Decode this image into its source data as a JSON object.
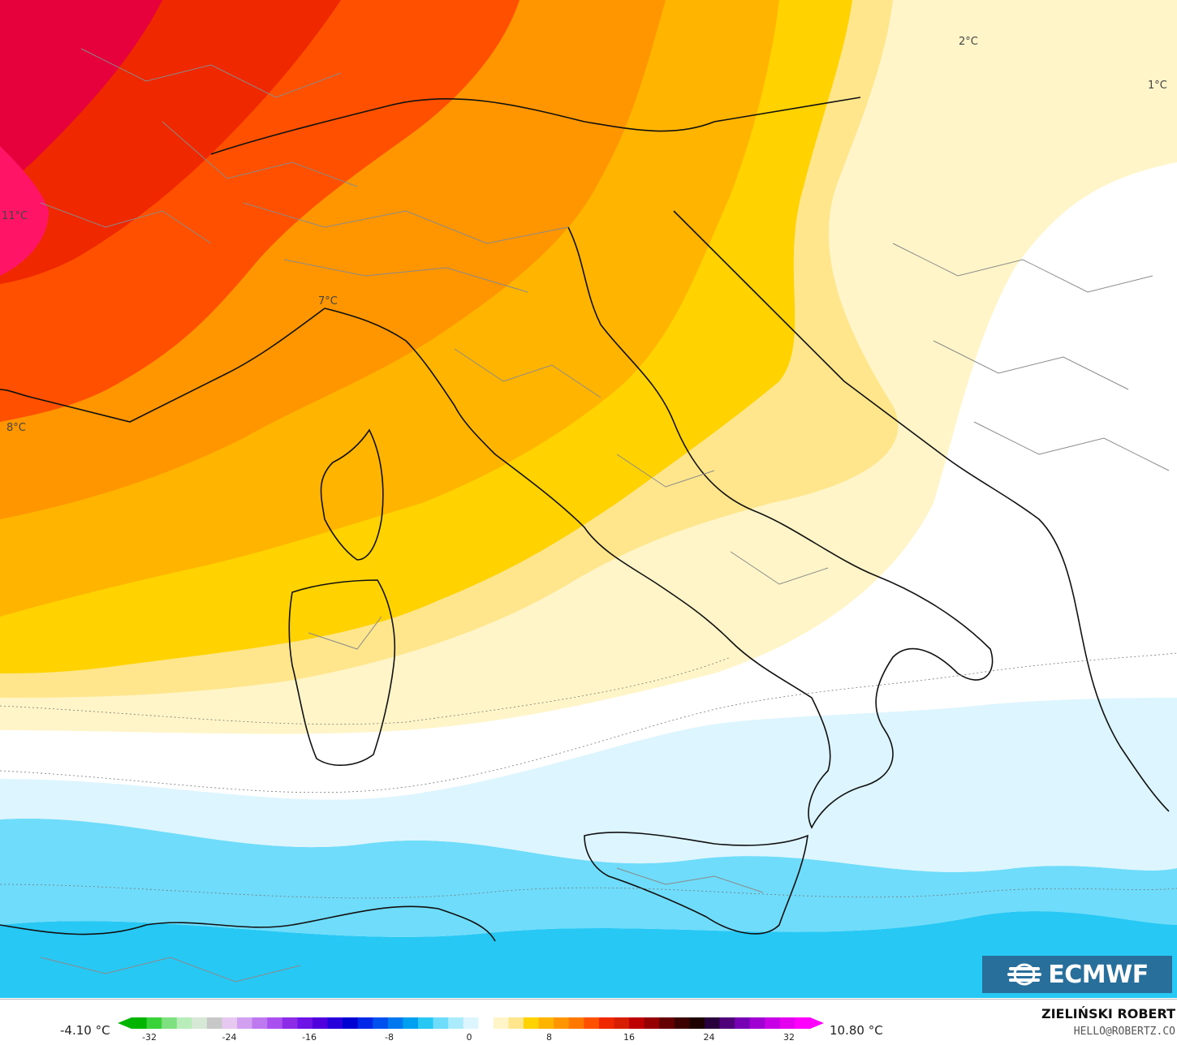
{
  "map": {
    "type": "temperature-anomaly-map",
    "region": "Italy and Central Mediterranean",
    "contour_labels": [
      {
        "text": "11°C"
      },
      {
        "text": "8°C"
      },
      {
        "text": "7°C"
      },
      {
        "text": "2°C"
      },
      {
        "text": "1°C"
      }
    ]
  },
  "legend": {
    "min_label": "-4.10 °C",
    "max_label": "10.80 °C",
    "ticks": [
      "-32",
      "-24",
      "-16",
      "-8",
      "0",
      "8",
      "16",
      "24",
      "32"
    ],
    "colors": [
      "#00b400",
      "#39d239",
      "#7ee07e",
      "#b8ecb8",
      "#d7e8d7",
      "#c8c8c8",
      "#e6c8f0",
      "#d2a0f0",
      "#be78f0",
      "#aa50f0",
      "#8c2ce6",
      "#6e14e6",
      "#5000dc",
      "#2800dc",
      "#0000d2",
      "#0028e6",
      "#0050f0",
      "#0078f0",
      "#00a0f0",
      "#28c8f5",
      "#6edcfa",
      "#aaebfc",
      "#dcf5fe",
      "#ffffff",
      "#fff5c8",
      "#ffe68c",
      "#ffd200",
      "#ffb400",
      "#ff9600",
      "#ff7800",
      "#ff5000",
      "#f02800",
      "#d71e00",
      "#be0000",
      "#960000",
      "#640000",
      "#3c0000",
      "#1e0000",
      "#28003c",
      "#500078",
      "#7800b4",
      "#a000d2",
      "#c800e6",
      "#e600f0",
      "#ff00ff"
    ]
  },
  "credits": {
    "author": "ZIELIŃSKI ROBERT",
    "email": "HELLO@ROBERTZ.CO",
    "logo": "ECMWF"
  }
}
